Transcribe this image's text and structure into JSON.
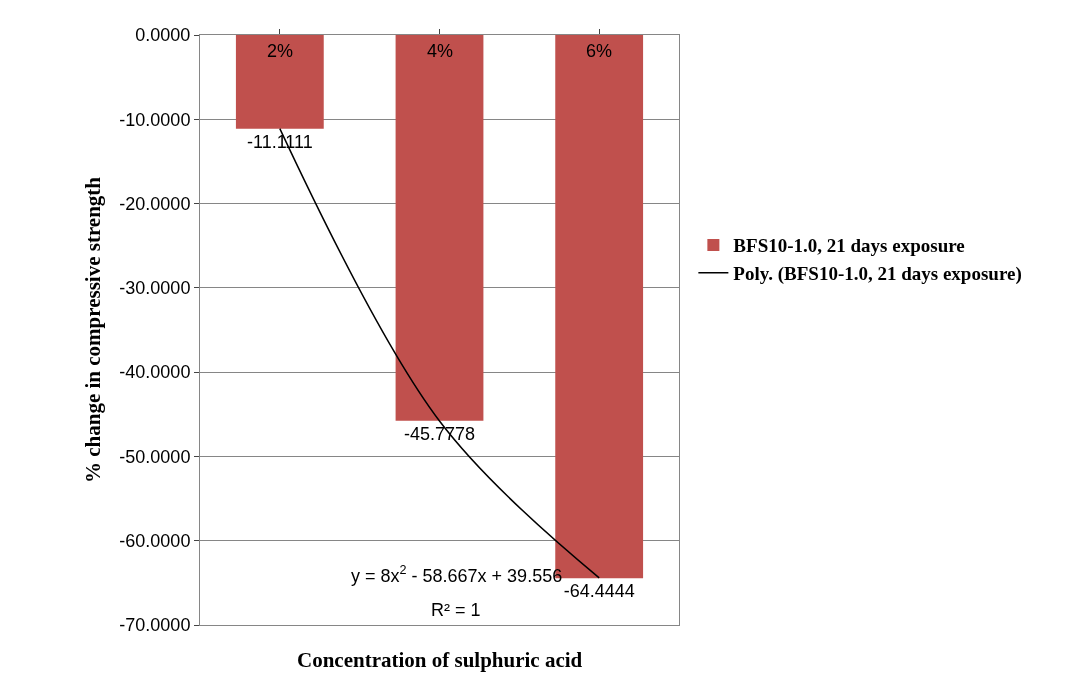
{
  "chart_data": {
    "type": "bar",
    "xlabel": "Concentration of sulphuric acid",
    "ylabel": "% change in compressive strength",
    "categories": [
      "2%",
      "4%",
      "6%"
    ],
    "series": [
      {
        "name": "BFS10-1.0, 21 days exposure",
        "color": "#c0504d",
        "values": [
          -11.1111,
          -45.7778,
          -64.4444
        ],
        "value_labels": [
          "-11.1111",
          "-45.7778",
          "-64.4444"
        ]
      },
      {
        "name": "Poly. (BFS10-1.0, 21 days exposure)",
        "type": "line",
        "color": "#000000",
        "values": [
          -11.1,
          -45.8,
          -64.4
        ]
      }
    ],
    "ylim": [
      -70,
      0
    ],
    "yticks": [
      {
        "value": 0,
        "label": "0.0000"
      },
      {
        "value": -10,
        "label": "-10.0000"
      },
      {
        "value": -20,
        "label": "-20.0000"
      },
      {
        "value": -30,
        "label": "-30.0000"
      },
      {
        "value": -40,
        "label": "-40.0000"
      },
      {
        "value": -50,
        "label": "-50.0000"
      },
      {
        "value": -60,
        "label": "-60.0000"
      },
      {
        "value": -70,
        "label": "-70.0000"
      }
    ],
    "grid": "y",
    "legend": "right",
    "annotations": [
      "y = 8x$^{2}$ - 58.667x + 39.556",
      "R² = 1"
    ]
  }
}
